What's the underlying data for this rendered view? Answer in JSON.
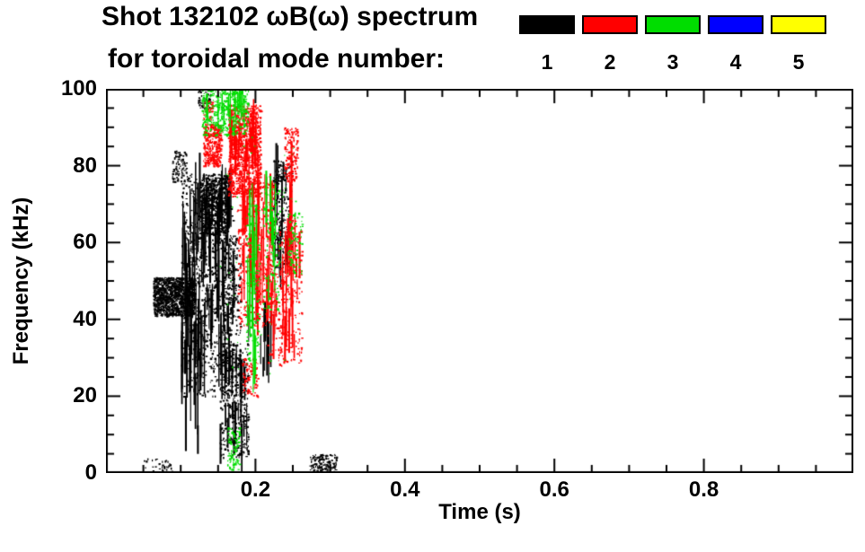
{
  "chart_data": {
    "type": "scatter",
    "title": "Shot 132102 ωB(ω) spectrum",
    "subtitle": "for toroidal mode number:",
    "xlabel": "Time (s)",
    "ylabel": "Frequency (kHz)",
    "xlim": [
      0,
      1.0
    ],
    "ylim": [
      0,
      100
    ],
    "grid": false,
    "xticks": {
      "major": [
        0.2,
        0.4,
        0.6,
        0.8
      ],
      "labels": [
        "0.2",
        "0.4",
        "0.6",
        "0.8"
      ],
      "minor_step": 0.05
    },
    "yticks": {
      "major": [
        0,
        20,
        40,
        60,
        80,
        100
      ],
      "labels": [
        "0",
        "20",
        "40",
        "60",
        "80",
        "100"
      ],
      "minor_step": 5
    },
    "legend": {
      "position": "top-right",
      "entries": [
        {
          "label": "1",
          "color": "#000000"
        },
        {
          "label": "2",
          "color": "#ff0000"
        },
        {
          "label": "3",
          "color": "#00dd00"
        },
        {
          "label": "4",
          "color": "#0000ff"
        },
        {
          "label": "5",
          "color": "#ffff00"
        }
      ]
    },
    "series": [
      {
        "name": "n=1",
        "color": "#000000",
        "clusters": [
          {
            "kind": "speckle",
            "t": [
              0.063,
              0.118
            ],
            "f": [
              41,
              51
            ],
            "n": 1200,
            "size": 2
          },
          {
            "kind": "speckle",
            "t": [
              0.1,
              0.17
            ],
            "f": [
              20,
              78
            ],
            "n": 850,
            "size": 2
          },
          {
            "kind": "streak",
            "t": [
              0.1,
              0.17
            ],
            "f": [
              24,
              75
            ],
            "n": 110,
            "len": 14
          },
          {
            "kind": "speckle",
            "t": [
              0.126,
              0.162
            ],
            "f": [
              62,
              78
            ],
            "n": 700,
            "size": 2
          },
          {
            "kind": "speckle",
            "t": [
              0.088,
              0.108
            ],
            "f": [
              76,
              84
            ],
            "n": 90,
            "size": 2
          },
          {
            "kind": "streak",
            "t": [
              0.1,
              0.128
            ],
            "f": [
              2,
              42
            ],
            "n": 12,
            "len": 18
          },
          {
            "kind": "speckle",
            "t": [
              0.152,
              0.19
            ],
            "f": [
              4,
              34
            ],
            "n": 420,
            "size": 2
          },
          {
            "kind": "streak",
            "t": [
              0.152,
              0.19
            ],
            "f": [
              6,
              30
            ],
            "n": 28,
            "len": 10
          },
          {
            "kind": "streak",
            "t": [
              0.185,
              0.225
            ],
            "f": [
              25,
              48
            ],
            "n": 16,
            "len": 12
          },
          {
            "kind": "speckle",
            "t": [
              0.223,
              0.248
            ],
            "f": [
              52,
              82
            ],
            "n": 240,
            "size": 2
          },
          {
            "kind": "streak",
            "t": [
              0.225,
              0.245
            ],
            "f": [
              55,
              80
            ],
            "n": 14,
            "len": 12
          },
          {
            "kind": "speckle",
            "t": [
              0.272,
              0.308
            ],
            "f": [
              0,
              5
            ],
            "n": 150,
            "size": 2
          },
          {
            "kind": "speckle",
            "t": [
              0.122,
              0.14
            ],
            "f": [
              95,
              100
            ],
            "n": 45,
            "size": 2
          },
          {
            "kind": "speckle",
            "t": [
              0.05,
              0.09
            ],
            "f": [
              0,
              4
            ],
            "n": 35,
            "size": 2
          },
          {
            "kind": "speckle",
            "t": [
              0.155,
              0.18
            ],
            "f": [
              36,
              62
            ],
            "n": 180,
            "size": 2
          }
        ]
      },
      {
        "name": "n=2",
        "color": "#ff0000",
        "clusters": [
          {
            "kind": "speckle",
            "t": [
              0.163,
              0.207
            ],
            "f": [
              72,
              96
            ],
            "n": 1000,
            "size": 2
          },
          {
            "kind": "streak",
            "t": [
              0.165,
              0.205
            ],
            "f": [
              76,
              93
            ],
            "n": 28,
            "len": 10
          },
          {
            "kind": "speckle",
            "t": [
              0.13,
              0.154
            ],
            "f": [
              80,
              91
            ],
            "n": 360,
            "size": 2
          },
          {
            "kind": "speckle",
            "t": [
              0.175,
              0.225
            ],
            "f": [
              38,
              76
            ],
            "n": 400,
            "size": 2
          },
          {
            "kind": "streak",
            "t": [
              0.178,
              0.225
            ],
            "f": [
              42,
              74
            ],
            "n": 42,
            "len": 14
          },
          {
            "kind": "speckle",
            "t": [
              0.215,
              0.262
            ],
            "f": [
              28,
              66
            ],
            "n": 320,
            "size": 2
          },
          {
            "kind": "streak",
            "t": [
              0.218,
              0.258
            ],
            "f": [
              32,
              62
            ],
            "n": 28,
            "len": 12
          },
          {
            "kind": "speckle",
            "t": [
              0.182,
              0.203
            ],
            "f": [
              20,
              30
            ],
            "n": 80,
            "size": 2
          },
          {
            "kind": "speckle",
            "t": [
              0.238,
              0.256
            ],
            "f": [
              76,
              90
            ],
            "n": 150,
            "size": 2
          },
          {
            "kind": "streak",
            "t": [
              0.243,
              0.251
            ],
            "f": [
              62,
              86
            ],
            "n": 5,
            "len": 20
          },
          {
            "kind": "speckle",
            "t": [
              0.128,
              0.142
            ],
            "f": [
              92,
              97
            ],
            "n": 40,
            "size": 2
          }
        ]
      },
      {
        "name": "n=3",
        "color": "#00dd00",
        "clusters": [
          {
            "kind": "speckle",
            "t": [
              0.128,
              0.19
            ],
            "f": [
              88,
              100
            ],
            "n": 360,
            "size": 2
          },
          {
            "kind": "streak",
            "t": [
              0.133,
              0.185
            ],
            "f": [
              90,
              99
            ],
            "n": 16,
            "len": 7
          },
          {
            "kind": "streak",
            "t": [
              0.188,
              0.202
            ],
            "f": [
              30,
              68
            ],
            "n": 13,
            "len": 16
          },
          {
            "kind": "speckle",
            "t": [
              0.186,
              0.205
            ],
            "f": [
              28,
              70
            ],
            "n": 120,
            "size": 2
          },
          {
            "kind": "streak",
            "t": [
              0.213,
              0.23
            ],
            "f": [
              44,
              72
            ],
            "n": 9,
            "len": 14
          },
          {
            "kind": "speckle",
            "t": [
              0.21,
              0.232
            ],
            "f": [
              42,
              74
            ],
            "n": 100,
            "size": 2
          },
          {
            "kind": "speckle",
            "t": [
              0.162,
              0.178
            ],
            "f": [
              1,
              12
            ],
            "n": 90,
            "size": 2
          },
          {
            "kind": "speckle",
            "t": [
              0.243,
              0.262
            ],
            "f": [
              52,
              68
            ],
            "n": 80,
            "size": 2
          },
          {
            "kind": "speckle",
            "t": [
              0.15,
              0.26
            ],
            "f": [
              25,
              88
            ],
            "n": 60,
            "size": 1.5
          },
          {
            "kind": "speckle",
            "t": [
              0.168,
              0.176
            ],
            "f": [
              95,
              100
            ],
            "n": 22,
            "size": 2
          }
        ]
      },
      {
        "name": "n=4",
        "color": "#0000ff",
        "clusters": []
      },
      {
        "name": "n=5",
        "color": "#ffff00",
        "clusters": []
      }
    ]
  }
}
